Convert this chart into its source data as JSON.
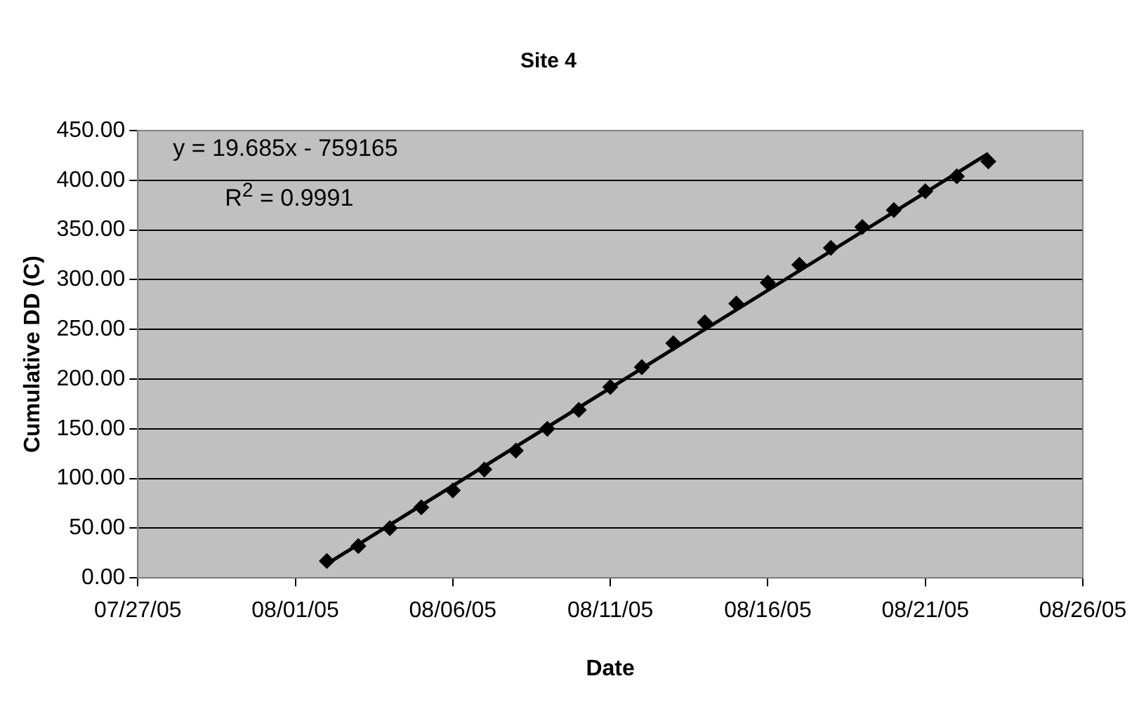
{
  "chart_data": {
    "type": "scatter",
    "title": "Site 4",
    "xlabel": "Date",
    "ylabel": "Cumulative DD (C)",
    "x": [
      "--08-02",
      "--08-03",
      "--08-04",
      "--08-05",
      "--08-06",
      "--08-07",
      "--08-08",
      "--08-09",
      "--08-10",
      "--08-11",
      "--08-12",
      "--08-13",
      "--08-14",
      "--08-15",
      "--08-16",
      "--08-17",
      "--08-18",
      "--08-19",
      "--08-20",
      "--08-21",
      "--08-22",
      "--08-23"
    ],
    "series": [
      {
        "type": "scatter",
        "color": "#000000",
        "marker": "diamond",
        "values": [
          17,
          32,
          50,
          71,
          88,
          109,
          128,
          150,
          169,
          192,
          212,
          236,
          257,
          276,
          297,
          315,
          332,
          353,
          370,
          389,
          404,
          419
        ]
      },
      {
        "type": "line",
        "color": "#000000",
        "marker": "none",
        "x": [
          "--08-02",
          "--08-23"
        ],
        "values": [
          14,
          427
        ]
      }
    ],
    "xlim": [
      "--07-27",
      "--08-26"
    ],
    "xticks": [
      {
        "value": "--07-27",
        "label": "07/27/05"
      },
      {
        "value": "--08-01",
        "label": "08/01/05"
      },
      {
        "value": "--08-06",
        "label": "08/06/05"
      },
      {
        "value": "--08-11",
        "label": "08/11/05"
      },
      {
        "value": "--08-16",
        "label": "08/16/05"
      },
      {
        "value": "--08-21",
        "label": "08/21/05"
      },
      {
        "value": "--08-26",
        "label": "08/26/05"
      }
    ],
    "ylim": [
      0,
      450
    ],
    "yticks": [
      {
        "value": 0,
        "label": "0.00"
      },
      {
        "value": 50,
        "label": "50.00"
      },
      {
        "value": 100,
        "label": "100.00"
      },
      {
        "value": 150,
        "label": "150.00"
      },
      {
        "value": 200,
        "label": "200.00"
      },
      {
        "value": 250,
        "label": "250.00"
      },
      {
        "value": 300,
        "label": "300.00"
      },
      {
        "value": 350,
        "label": "350.00"
      },
      {
        "value": 400,
        "label": "400.00"
      },
      {
        "value": 450,
        "label": "450.00"
      }
    ],
    "grid": "y",
    "legend": false,
    "annotations": [
      "y = 19.685x - 759165",
      "R$^{2}$ = 0.9991"
    ]
  }
}
